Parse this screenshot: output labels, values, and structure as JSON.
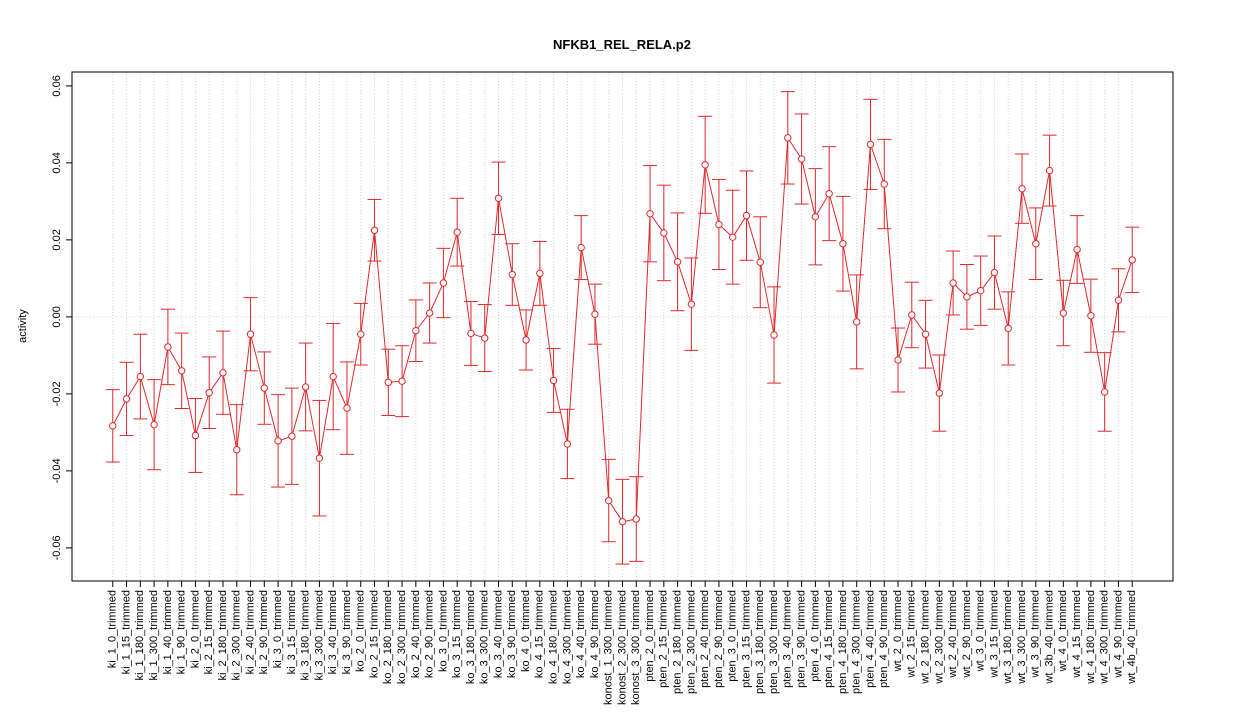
{
  "chart_data": {
    "type": "errorbar-line",
    "title": "NFKB1_REL_RELA.p2",
    "y_label": "activity",
    "categories": [
      "ki_1_0_trimmed",
      "ki_1_15_trimmed",
      "ki_1_180_trimmed",
      "ki_1_300_trimmed",
      "ki_1_40_trimmed",
      "ki_1_90_trimmed",
      "ki_2_0_trimmed",
      "ki_2_15_trimmed",
      "ki_2_180_trimmed",
      "ki_2_300_trimmed",
      "ki_2_40_trimmed",
      "ki_2_90_trimmed",
      "ki_3_0_trimmed",
      "ki_3_15_trimmed",
      "ki_3_180_trimmed",
      "ki_3_300_trimmed",
      "ki_3_40_trimmed",
      "ki_3_90_trimmed",
      "ko_2_0_trimmed",
      "ko_2_15_trimmed",
      "ko_2_180_trimmed",
      "ko_2_300_trimmed",
      "ko_2_40_trimmed",
      "ko_2_90_trimmed",
      "ko_3_0_trimmed",
      "ko_3_15_trimmed",
      "ko_3_180_trimmed",
      "ko_3_300_trimmed",
      "ko_3_40_trimmed",
      "ko_3_90_trimmed",
      "ko_4_0_trimmed",
      "ko_4_15_trimmed",
      "ko_4_180_trimmed",
      "ko_4_300_trimmed",
      "ko_4_40_trimmed",
      "ko_4_90_trimmed",
      "konost_1_300_trimmed",
      "konost_2_300_trimmed",
      "konost_3_300_trimmed",
      "pten_2_0_trimmed",
      "pten_2_15_trimmed",
      "pten_2_180_trimmed",
      "pten_2_300_trimmed",
      "pten_2_40_trimmed",
      "pten_2_90_trimmed",
      "pten_3_0_trimmed",
      "pten_3_15_trimmed",
      "pten_3_180_trimmed",
      "pten_3_300_trimmed",
      "pten_3_40_trimmed",
      "pten_3_90_trimmed",
      "pten_4_0_trimmed",
      "pten_4_15_trimmed",
      "pten_4_180_trimmed",
      "pten_4_300_trimmed",
      "pten_4_40_trimmed",
      "pten_4_90_trimmed",
      "wt_2_0_trimmed",
      "wt_2_15_trimmed",
      "wt_2_180_trimmed",
      "wt_2_300_trimmed",
      "wt_2_40_trimmed",
      "wt_2_90_trimmed",
      "wt_3_0_trimmed",
      "wt_3_15_trimmed",
      "wt_3_180_trimmed",
      "wt_3_300_trimmed",
      "wt_3_90_trimmed",
      "wt_3b_40_trimmed",
      "wt_4_0_trimmed",
      "wt_4_15_trimmed",
      "wt_4_180_trimmed",
      "wt_4_300_trimmed",
      "wt_4_90_trimmed",
      "wt_4b_40_trimmed"
    ],
    "values": [
      -0.0283,
      -0.0213,
      -0.0155,
      -0.028,
      -0.0078,
      -0.014,
      -0.0308,
      -0.0197,
      -0.0145,
      -0.0345,
      -0.0045,
      -0.0185,
      -0.0322,
      -0.031,
      -0.0182,
      -0.0367,
      -0.0155,
      -0.0237,
      -0.0045,
      0.0225,
      -0.017,
      -0.0167,
      -0.0036,
      0.001,
      0.0088,
      0.022,
      -0.0043,
      -0.0055,
      0.0308,
      0.011,
      -0.006,
      0.0113,
      -0.0165,
      -0.033,
      0.018,
      0.0007,
      -0.0477,
      -0.0532,
      -0.0525,
      0.0268,
      0.0218,
      0.0143,
      0.0033,
      0.0395,
      0.024,
      0.0207,
      0.0263,
      0.0142,
      -0.0047,
      0.0465,
      0.041,
      0.026,
      0.032,
      0.019,
      -0.0013,
      0.0448,
      0.0345,
      -0.0112,
      0.0005,
      -0.0045,
      -0.0198,
      0.0088,
      0.0052,
      0.0068,
      0.0115,
      -0.003,
      0.0333,
      0.019,
      0.038,
      0.001,
      0.0175,
      0.0003,
      -0.0195,
      0.0043,
      0.0148
    ],
    "errors": [
      0.0094,
      0.0095,
      0.011,
      0.0117,
      0.0098,
      0.0098,
      0.0096,
      0.0093,
      0.0108,
      0.0117,
      0.0095,
      0.0094,
      0.012,
      0.0125,
      0.0114,
      0.015,
      0.0138,
      0.012,
      0.008,
      0.008,
      0.0086,
      0.0092,
      0.008,
      0.0078,
      0.009,
      0.0088,
      0.0083,
      0.0087,
      0.0094,
      0.008,
      0.0078,
      0.0083,
      0.0083,
      0.009,
      0.0083,
      0.0078,
      0.0107,
      0.011,
      0.011,
      0.0125,
      0.0124,
      0.0127,
      0.012,
      0.0126,
      0.0117,
      0.0122,
      0.0116,
      0.0118,
      0.0125,
      0.012,
      0.0117,
      0.0125,
      0.0122,
      0.0123,
      0.0122,
      0.0117,
      0.0116,
      0.0083,
      0.0085,
      0.0088,
      0.0099,
      0.0083,
      0.0084,
      0.009,
      0.0095,
      0.0095,
      0.009,
      0.0093,
      0.0092,
      0.0085,
      0.0088,
      0.0095,
      0.0102,
      0.0082,
      0.0085
    ],
    "color": "#e0282a",
    "ylim": [
      -0.0686,
      0.0636
    ],
    "yticks": [
      -0.06,
      -0.04,
      -0.02,
      {
        "value": 0,
        "label": "0.00"
      },
      0.02,
      0.04,
      0.06
    ],
    "grid": true,
    "reference_line": 0
  }
}
